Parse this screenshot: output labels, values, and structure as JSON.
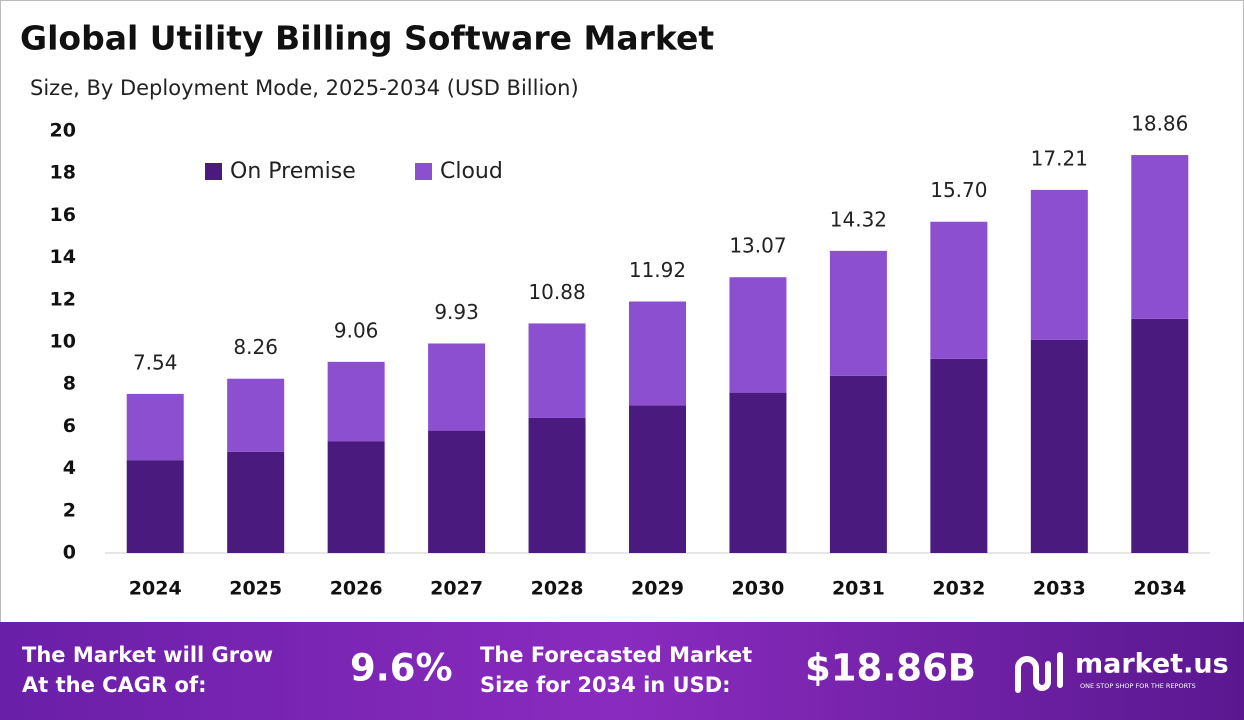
{
  "chart_data": {
    "type": "stacked_bar",
    "title": "Global Utility Billing Software Market",
    "subtitle": "Size, By Deployment Mode, 2025-2034 (USD Billion)",
    "categories": [
      "2024",
      "2025",
      "2026",
      "2027",
      "2028",
      "2029",
      "2030",
      "2031",
      "2032",
      "2033",
      "2034"
    ],
    "series": [
      {
        "name": "On Premise",
        "color": "#4a1a7e",
        "values": [
          4.4,
          4.8,
          5.3,
          5.8,
          6.4,
          7.0,
          7.6,
          8.4,
          9.2,
          10.1,
          11.1
        ]
      },
      {
        "name": "Cloud",
        "color": "#8b4fd0",
        "values": [
          3.14,
          3.46,
          3.76,
          4.13,
          4.48,
          4.92,
          5.47,
          5.92,
          6.5,
          7.11,
          7.76
        ]
      }
    ],
    "totals": [
      7.54,
      8.26,
      9.06,
      9.93,
      10.88,
      11.92,
      13.07,
      14.32,
      {
        "value": 15.7,
        "label": "15.70"
      },
      17.21,
      18.86
    ],
    "ylim": [
      0,
      20
    ],
    "yticks": [
      0,
      2,
      4,
      6,
      8,
      10,
      12,
      14,
      16,
      18,
      20
    ],
    "grid": false,
    "legend": "top-left"
  },
  "footer": {
    "cagr_text_1": "The Market will Grow",
    "cagr_text_2": "At the CAGR of:",
    "cagr": "9.6%",
    "forecast_text_1": "The Forecasted Market",
    "forecast_text_2": "Size for 2034 in USD:",
    "forecast": "$18.86B",
    "brand": "market.us",
    "tagline": "ONE STOP SHOP FOR THE REPORTS"
  }
}
